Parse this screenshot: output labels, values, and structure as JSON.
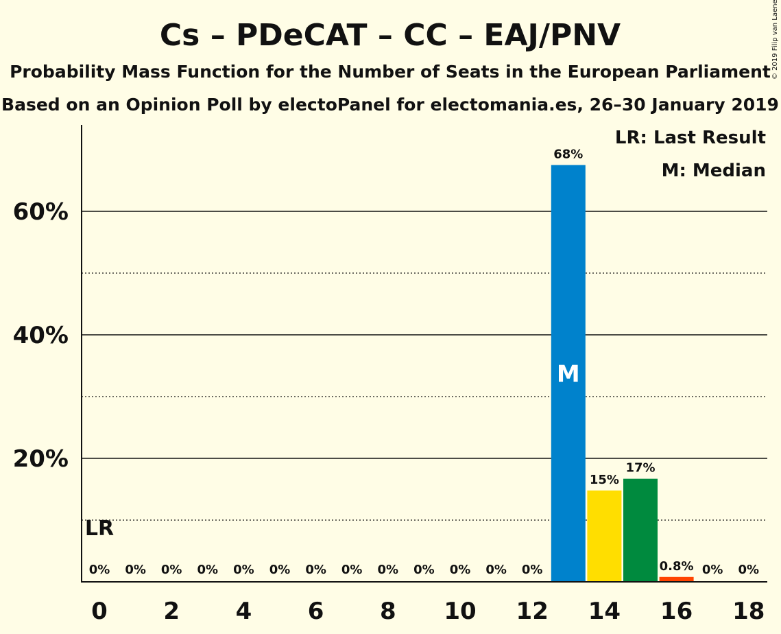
{
  "title": "Cs – PDeCAT – CC – EAJ/PNV",
  "subtitle1": "Probability Mass Function for the Number of Seats in the European Parliament",
  "subtitle2": "Based on an Opinion Poll by electoPanel for electomania.es, 26–30 January 2019",
  "copyright": "© 2019 Filip van Laenen",
  "legend": {
    "last_result": "LR: Last Result",
    "median": "M: Median"
  },
  "markers": {
    "last_result_label": "LR",
    "last_result_seats": 0,
    "median_label": "M",
    "median_seats": 13
  },
  "colors": {
    "background": "#fffde6",
    "default_bar": "#0082cc",
    "seat_14": "#ffde00",
    "seat_15": "#008a3e",
    "seat_16": "#ff4400"
  },
  "chart_data": {
    "type": "bar",
    "x": [
      0,
      1,
      2,
      3,
      4,
      5,
      6,
      7,
      8,
      9,
      10,
      11,
      12,
      13,
      14,
      15,
      16,
      17,
      18
    ],
    "values": [
      0,
      0,
      0,
      0,
      0,
      0,
      0,
      0,
      0,
      0,
      0,
      0,
      0,
      67.5,
      14.8,
      16.7,
      0.8,
      0,
      0
    ],
    "labels": [
      "0%",
      "0%",
      "0%",
      "0%",
      "0%",
      "0%",
      "0%",
      "0%",
      "0%",
      "0%",
      "0%",
      "0%",
      "0%",
      "68%",
      "15%",
      "17%",
      "0.8%",
      "0%",
      "0%"
    ],
    "bar_colors": [
      "#0082cc",
      "#0082cc",
      "#0082cc",
      "#0082cc",
      "#0082cc",
      "#0082cc",
      "#0082cc",
      "#0082cc",
      "#0082cc",
      "#0082cc",
      "#0082cc",
      "#0082cc",
      "#0082cc",
      "#0082cc",
      "#ffde00",
      "#008a3e",
      "#ff4400",
      "#0082cc",
      "#0082cc"
    ],
    "x_tick_labels": [
      "0",
      "2",
      "4",
      "6",
      "8",
      "10",
      "12",
      "14",
      "16",
      "18"
    ],
    "x_tick_values": [
      0,
      2,
      4,
      6,
      8,
      10,
      12,
      14,
      16,
      18
    ],
    "y_tick_labels": [
      "20%",
      "40%",
      "60%"
    ],
    "y_tick_values": [
      20,
      40,
      60
    ],
    "y_minor_grid": [
      10,
      30,
      50
    ],
    "ylim": [
      0,
      74
    ],
    "grid": true,
    "legend_position": "top-right"
  }
}
